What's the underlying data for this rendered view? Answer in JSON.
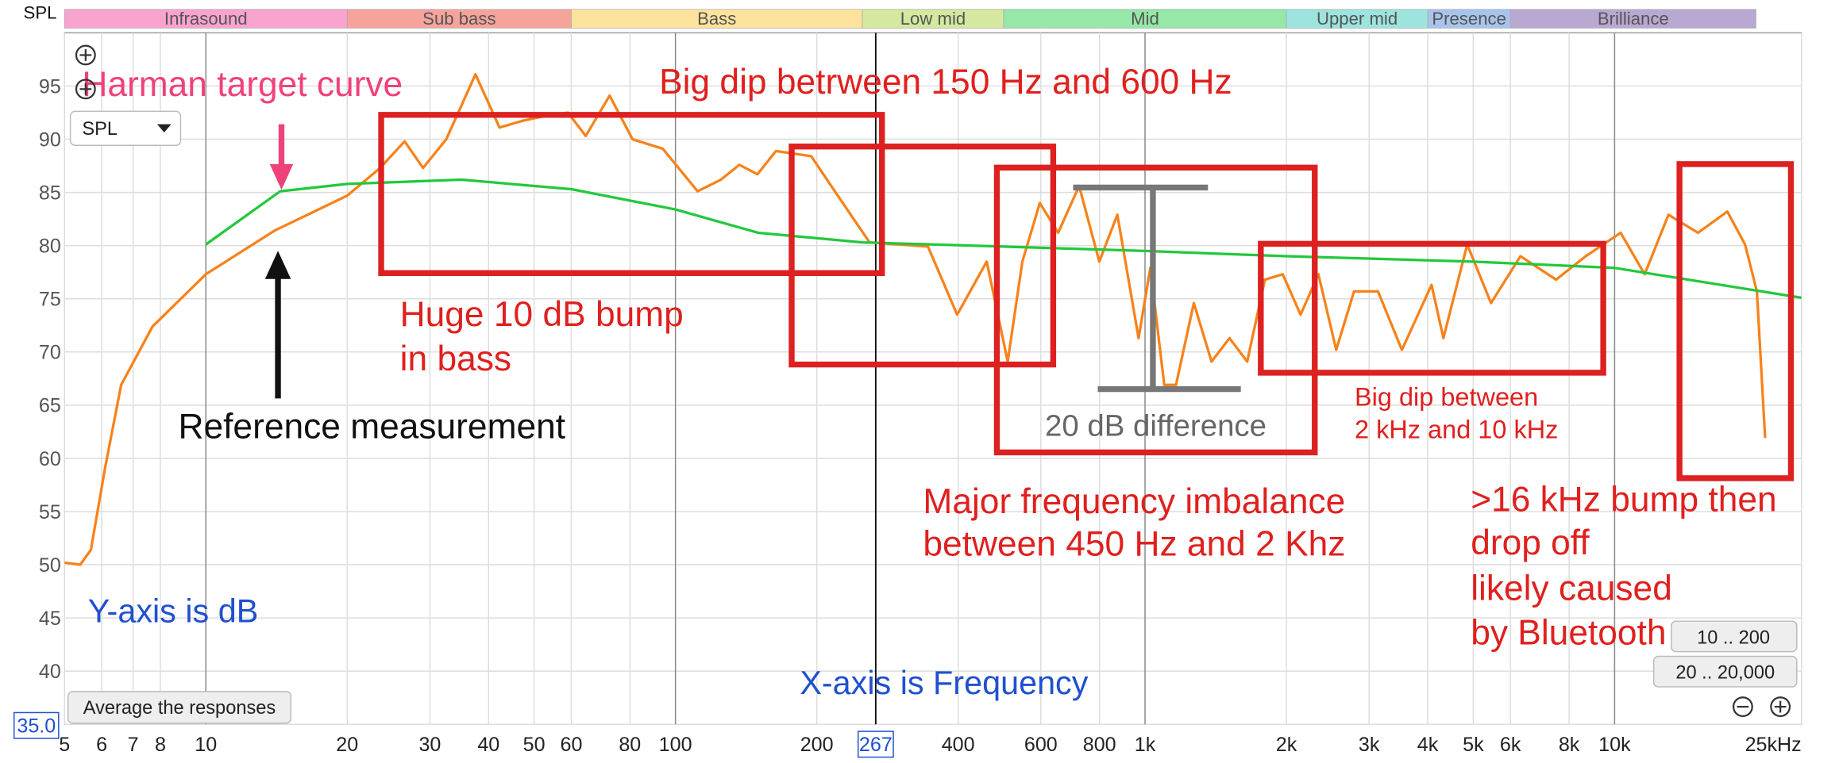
{
  "chart_data": {
    "type": "line",
    "y_axis_label": "SPL",
    "log_x": true,
    "grid": true,
    "xlim": [
      5,
      25000
    ],
    "ylim": [
      35,
      100
    ],
    "xticks": [
      5,
      6,
      7,
      8,
      10,
      20,
      30,
      40,
      50,
      60,
      80,
      100,
      200,
      400,
      600,
      800,
      {
        "value": 1000,
        "label": "1k"
      },
      {
        "value": 2000,
        "label": "2k"
      },
      {
        "value": 3000,
        "label": "3k"
      },
      {
        "value": 4000,
        "label": "4k"
      },
      {
        "value": 5000,
        "label": "5k"
      },
      {
        "value": 6000,
        "label": "6k"
      },
      {
        "value": 8000,
        "label": "8k"
      },
      {
        "value": 10000,
        "label": "10k"
      },
      {
        "value": 25000,
        "label": "25kHz"
      }
    ],
    "yticks": [
      {
        "value": 35,
        "label": "35.0"
      },
      40,
      45,
      50,
      55,
      60,
      65,
      70,
      75,
      80,
      85,
      90,
      95
    ],
    "cursor": 267,
    "bands": [
      {
        "name": "Infrasound",
        "from": 5,
        "to": 20,
        "color": "#f9a3cf"
      },
      {
        "name": "Sub bass",
        "from": 20,
        "to": 60,
        "color": "#f6a39b"
      },
      {
        "name": "Bass",
        "from": 60,
        "to": 250,
        "color": "#fde39b"
      },
      {
        "name": "Low mid",
        "from": 250,
        "to": 500,
        "color": "#d4e8a0"
      },
      {
        "name": "Mid",
        "from": 500,
        "to": 2000,
        "color": "#95e8a7"
      },
      {
        "name": "Upper mid",
        "from": 2000,
        "to": 4000,
        "color": "#9de4de"
      },
      {
        "name": "Presence",
        "from": 4000,
        "to": 6000,
        "color": "#a8c4ec"
      },
      {
        "name": "Brilliance",
        "from": 6000,
        "to": 20000,
        "color": "#b9a8d2"
      }
    ],
    "series": [
      {
        "color": "#f7821b",
        "x": [
          5,
          5.4,
          5.69,
          6.1,
          6.6,
          7.7,
          10,
          14,
          20,
          23.5,
          26.5,
          29,
          32.5,
          37.5,
          42.2,
          47,
          52.9,
          59,
          64.4,
          72.4,
          81,
          94,
          111.5,
          125,
          136.8,
          149.5,
          163.7,
          194.6,
          218.5,
          259,
          299,
          345,
          398,
          460,
          510,
          548,
          597,
          653,
          724,
          799,
          873,
          969,
          1026,
          1099,
          1164,
          1270,
          1386,
          1513,
          1650,
          1800,
          1965,
          2144,
          2340,
          2554,
          2787,
          3134,
          3524,
          4076,
          4320,
          4855,
          5454,
          6304,
          7506,
          8680,
          10300,
          11590,
          13020,
          15050,
          17380,
          18960,
          20090,
          20920
        ],
        "values": [
          50.2,
          50,
          51.4,
          59.1,
          66.9,
          72.4,
          77.3,
          81.4,
          84.7,
          87.3,
          89.8,
          87.3,
          90,
          96.1,
          91.1,
          91.7,
          92.2,
          92.5,
          90.3,
          94.1,
          90,
          89.1,
          85.1,
          86.2,
          87.6,
          86.7,
          88.9,
          88.4,
          85.1,
          80.3,
          80.1,
          79.9,
          73.5,
          78.5,
          69.1,
          78.5,
          84,
          81.2,
          85.6,
          78.5,
          82.9,
          71.3,
          77.9,
          66.9,
          66.9,
          74.6,
          69.1,
          71.3,
          69.1,
          76.8,
          77.3,
          73.5,
          77.3,
          70.2,
          75.7,
          75.7,
          70.2,
          76.3,
          71.3,
          80.1,
          74.6,
          79,
          76.8,
          79,
          81.2,
          77.3,
          82.9,
          81.2,
          83.2,
          80.1,
          75.7,
          61.9
        ]
      },
      {
        "color": "#22c83c",
        "x": [
          10,
          14.4,
          20,
          35,
          60,
          100,
          150,
          250,
          500,
          1000,
          2000,
          5000,
          10000,
          25000
        ],
        "values": [
          80.1,
          85.1,
          85.8,
          86.2,
          85.3,
          83.4,
          81.2,
          80.3,
          79.9,
          79.5,
          79,
          78.5,
          77.9,
          75.1
        ]
      }
    ],
    "annotations": [
      {
        "lines": [
          "Harman target curve"
        ],
        "color": "#f0427a"
      },
      {
        "lines": [
          "Big dip betrween 150 Hz and 600 Hz"
        ],
        "color": "#e0201e"
      },
      {
        "lines": [
          "Huge 10 dB bump",
          "in bass"
        ],
        "color": "#e0201e"
      },
      {
        "lines": [
          "Reference measurement"
        ],
        "color": "#111111"
      },
      {
        "lines": [
          "20 dB difference"
        ],
        "color": "#666666"
      },
      {
        "lines": [
          "Big dip between",
          "2 kHz and 10 kHz"
        ],
        "color": "#e0201e"
      },
      {
        "lines": [
          "Major frequency imbalance",
          "between 450 Hz and 2 Khz"
        ],
        "color": "#e0201e"
      },
      {
        "lines": [
          ">16 kHz bump then",
          "drop off",
          "likely caused",
          "by Bluetooth"
        ],
        "color": "#e0201e"
      },
      {
        "lines": [
          "Y-axis is dB"
        ],
        "color": "#2050d0"
      },
      {
        "lines": [
          "X-axis is Frequency"
        ],
        "color": "#2050d0"
      }
    ]
  },
  "ui": {
    "dropdown": "SPL",
    "buttons": [
      "Average the responses",
      "10 .. 200",
      "20 .. 20,000"
    ]
  }
}
